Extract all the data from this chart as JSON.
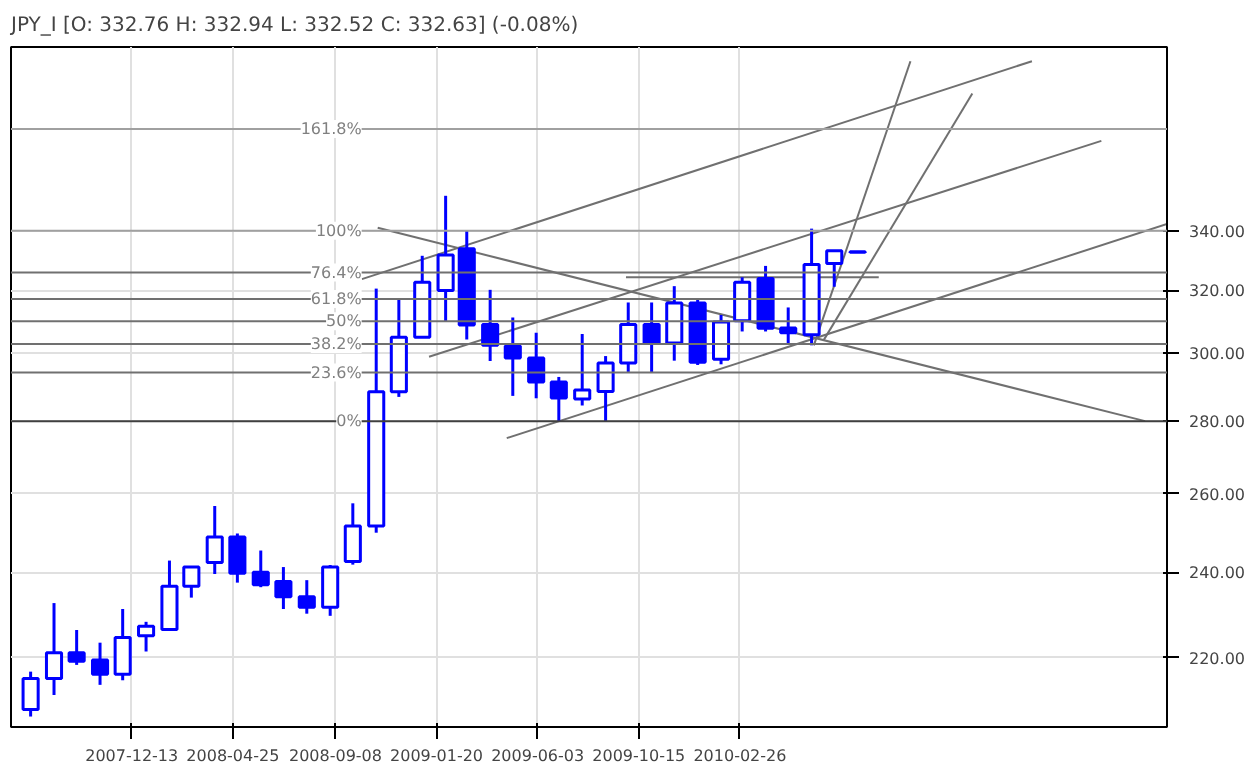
{
  "chart_data": {
    "type": "candlestick",
    "title": "JPY_I [O: 332.76  H: 332.94  L: 332.52  C: 332.63] (-0.08%)",
    "x": [
      "2007-08",
      "2007-09",
      "2007-10",
      "2007-11",
      "2007-12",
      "2008-01",
      "2008-02",
      "2008-03",
      "2008-04",
      "2008-05",
      "2008-06",
      "2008-07",
      "2008-08",
      "2008-09",
      "2008-10",
      "2008-11",
      "2008-12",
      "2009-01",
      "2009-02",
      "2009-03",
      "2009-04",
      "2009-05",
      "2009-06",
      "2009-07",
      "2009-08",
      "2009-09",
      "2009-10",
      "2009-11",
      "2009-12",
      "2010-01",
      "2010-02",
      "2010-03",
      "2010-04",
      "2010-05",
      "2010-06",
      "2010-07",
      "2010-08"
    ],
    "ohlc": [
      [
        208.7,
        216.9,
        207.2,
        215.4
      ],
      [
        215.4,
        232.6,
        211.8,
        221.1
      ],
      [
        221.1,
        226.3,
        218.4,
        219.2
      ],
      [
        219.5,
        223.4,
        214.0,
        216.3
      ],
      [
        216.3,
        231.2,
        215.0,
        224.6
      ],
      [
        225.0,
        228.2,
        221.4,
        227.2
      ],
      [
        226.4,
        242.9,
        226.2,
        236.6
      ],
      [
        236.6,
        241.3,
        233.9,
        241.3
      ],
      [
        242.4,
        256.8,
        239.6,
        248.8
      ],
      [
        248.8,
        249.7,
        237.5,
        239.8
      ],
      [
        240.0,
        245.4,
        236.4,
        237.0
      ],
      [
        237.8,
        241.3,
        231.2,
        234.1
      ],
      [
        234.1,
        238.1,
        230.1,
        231.6
      ],
      [
        231.6,
        241.8,
        229.6,
        241.3
      ],
      [
        242.7,
        257.5,
        241.9,
        251.6
      ],
      [
        251.6,
        320.5,
        249.9,
        288.5
      ],
      [
        288.5,
        317.4,
        287.0,
        305.0
      ],
      [
        305.0,
        331.4,
        305.0,
        322.6
      ],
      [
        319.9,
        352.3,
        309.8,
        331.7
      ],
      [
        333.8,
        340.0,
        304.3,
        308.8
      ],
      [
        309.0,
        320.1,
        297.7,
        302.5
      ],
      [
        302.3,
        311.2,
        287.3,
        298.6
      ],
      [
        298.6,
        306.4,
        286.6,
        291.4
      ],
      [
        291.4,
        292.9,
        280.0,
        286.7
      ],
      [
        286.4,
        306.0,
        284.5,
        289.0
      ],
      [
        288.6,
        299.2,
        280.0,
        297.1
      ],
      [
        297.1,
        316.0,
        294.4,
        309.0
      ],
      [
        309.0,
        316.0,
        294.4,
        303.2
      ],
      [
        303.2,
        321.3,
        297.8,
        315.8
      ],
      [
        315.8,
        317.4,
        296.5,
        297.3
      ],
      [
        298.2,
        312.0,
        296.7,
        309.8
      ],
      [
        310.2,
        324.2,
        306.8,
        322.6
      ],
      [
        323.8,
        328.0,
        306.8,
        307.8
      ],
      [
        307.9,
        314.4,
        302.9,
        306.4
      ],
      [
        305.8,
        340.7,
        302.5,
        328.5
      ],
      [
        328.8,
        333.1,
        321.1,
        333.1
      ],
      [
        332.76,
        332.94,
        332.52,
        332.63
      ]
    ],
    "color": "#0000ff",
    "series": [
      {
        "type": "line",
        "color": "#707070",
        "x": [
          "2008-11-03",
          "2011-08-17"
        ],
        "values": [
          341.0,
          280.0
        ]
      },
      {
        "type": "line",
        "color": "#707070",
        "x": [
          "2009-04-23",
          "2011-09-15"
        ],
        "values": [
          275.2,
          342.3
        ]
      },
      {
        "type": "line",
        "color": "#707070",
        "x": [
          "2008-10-13",
          "2011-03-20"
        ],
        "values": [
          323.6,
          404.1
        ]
      },
      {
        "type": "line",
        "color": "#707070",
        "x": [
          "2009-01-10",
          "2011-06-20"
        ],
        "values": [
          299.0,
          372.6
        ]
      },
      {
        "type": "line",
        "color": "#707070",
        "x": [
          "2010-06-04",
          "2010-10-10"
        ],
        "values": [
          302.5,
          404.1
        ]
      },
      {
        "type": "line",
        "color": "#707070",
        "x": [
          "2010-06-17",
          "2010-12-31"
        ],
        "values": [
          304.1,
          391.0
        ]
      },
      {
        "type": "line",
        "color": "#707070",
        "x": [
          "2009-09-28",
          "2010-08-29"
        ],
        "values": [
          324.2,
          324.2
        ]
      }
    ],
    "ref_lines": [
      {
        "axis": "y",
        "value": 280,
        "color": "#404040"
      },
      {
        "axis": "y",
        "value": 294.2,
        "color": "#707070"
      },
      {
        "axis": "y",
        "value": 302.9,
        "color": "#707070"
      },
      {
        "axis": "y",
        "value": 310,
        "color": "#707070"
      },
      {
        "axis": "y",
        "value": 317.1,
        "color": "#707070"
      },
      {
        "axis": "y",
        "value": 325.8,
        "color": "#707070"
      },
      {
        "axis": "y",
        "value": 340,
        "color": "#a0a0a0"
      },
      {
        "axis": "y",
        "value": 377.1,
        "color": "#a0a0a0"
      }
    ],
    "annotations": [
      {
        "text": "0%",
        "x": "2008-10-18",
        "y": 280
      },
      {
        "text": "23.6%",
        "x": "2008-10-18",
        "y": 294.2
      },
      {
        "text": "38.2%",
        "x": "2008-10-18",
        "y": 302.9
      },
      {
        "text": "50%",
        "x": "2008-10-18",
        "y": 310
      },
      {
        "text": "61.8%",
        "x": "2008-10-18",
        "y": 317.1
      },
      {
        "text": "76.4%",
        "x": "2008-10-18",
        "y": 325.8
      },
      {
        "text": "100%",
        "x": "2008-10-18",
        "y": 340
      },
      {
        "text": "161.8%",
        "x": "2008-10-18",
        "y": 377.1
      }
    ],
    "xlim": [
      "2007-07-06",
      "2011-09-15"
    ],
    "xticks": [
      "2007-12-13",
      "2008-04-25",
      "2008-09-08",
      "2009-01-20",
      "2009-06-03",
      "2009-10-15",
      "2010-02-26"
    ],
    "ylim": [
      205,
      410
    ],
    "yticks": [
      {
        "value": 220,
        "label": "220.00"
      },
      {
        "value": 240,
        "label": "240.00"
      },
      {
        "value": 260,
        "label": "260.00"
      },
      {
        "value": 280,
        "label": "280.00"
      },
      {
        "value": 300,
        "label": "300.00"
      },
      {
        "value": 320,
        "label": "320.00"
      },
      {
        "value": 340,
        "label": "340.00"
      }
    ],
    "log": true,
    "grid": true
  }
}
